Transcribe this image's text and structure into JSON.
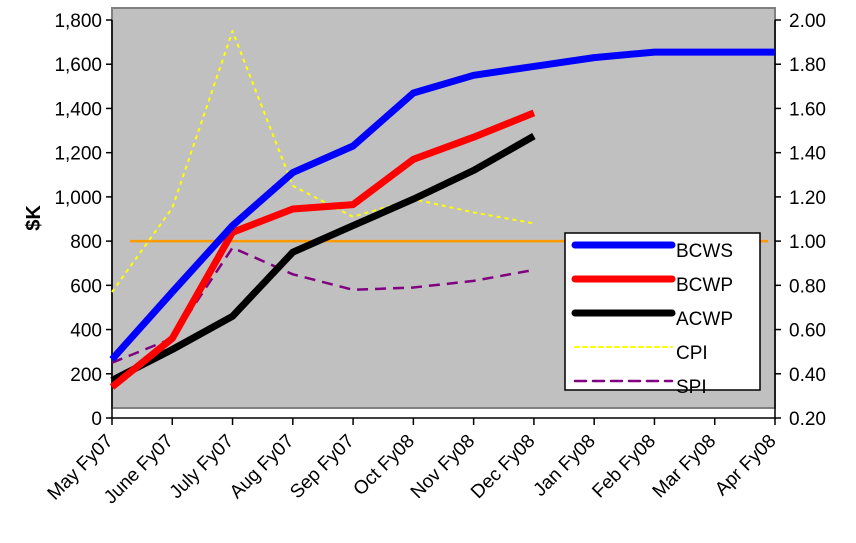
{
  "chart_data": {
    "type": "line",
    "title": "",
    "xlabel": "",
    "ylabel": "$K",
    "categories": [
      "May Fy07",
      "June Fy07",
      "July Fy07",
      "Aug Fy07",
      "Sep Fy07",
      "Oct Fy08",
      "Nov Fy08",
      "Dec Fy08",
      "Jan Fy08",
      "Feb Fy08",
      "Mar Fy08",
      "Apr Fy08"
    ],
    "ylim": [
      0,
      1800
    ],
    "yticks": [
      "0",
      "200",
      "400",
      "600",
      "800",
      "1,000",
      "1,200",
      "1,400",
      "1,600",
      "1,800"
    ],
    "y2lim": [
      0.2,
      2.0
    ],
    "y2ticks": [
      "0.20",
      "0.40",
      "0.60",
      "0.80",
      "1.00",
      "1.20",
      "1.40",
      "1.60",
      "1.80",
      "2.00"
    ],
    "grid": false,
    "plot_background": "#c0c0c0",
    "legend_position": "right",
    "series": [
      {
        "name": "BCWS",
        "axis": "left",
        "color": "#0000ff",
        "style": "solid-thick",
        "values": [
          265,
          570,
          870,
          1110,
          1230,
          1470,
          1550,
          1590,
          1630,
          1655,
          1655,
          1655
        ]
      },
      {
        "name": "BCWP",
        "axis": "left",
        "color": "#ff0000",
        "style": "solid-thick",
        "values": [
          140,
          360,
          840,
          945,
          965,
          1170,
          1270,
          1380,
          null,
          null,
          null,
          null
        ]
      },
      {
        "name": "ACWP",
        "axis": "left",
        "color": "#000000",
        "style": "solid-thick",
        "values": [
          170,
          310,
          460,
          750,
          870,
          990,
          1120,
          1275,
          null,
          null,
          null,
          null
        ]
      },
      {
        "name": "CPI",
        "axis": "right",
        "color": "#ffff00",
        "style": "dotted",
        "values": [
          0.77,
          1.15,
          1.95,
          1.25,
          1.11,
          1.19,
          1.13,
          1.08,
          null,
          null,
          null,
          null
        ]
      },
      {
        "name": "SPI",
        "axis": "right",
        "color": "#800080",
        "style": "dashed",
        "values": [
          0.45,
          0.56,
          0.97,
          0.85,
          0.78,
          0.79,
          0.82,
          0.87,
          null,
          null,
          null,
          null
        ]
      }
    ],
    "reference_line": {
      "axis": "right",
      "value": 1.0,
      "color": "#ff9900"
    }
  }
}
